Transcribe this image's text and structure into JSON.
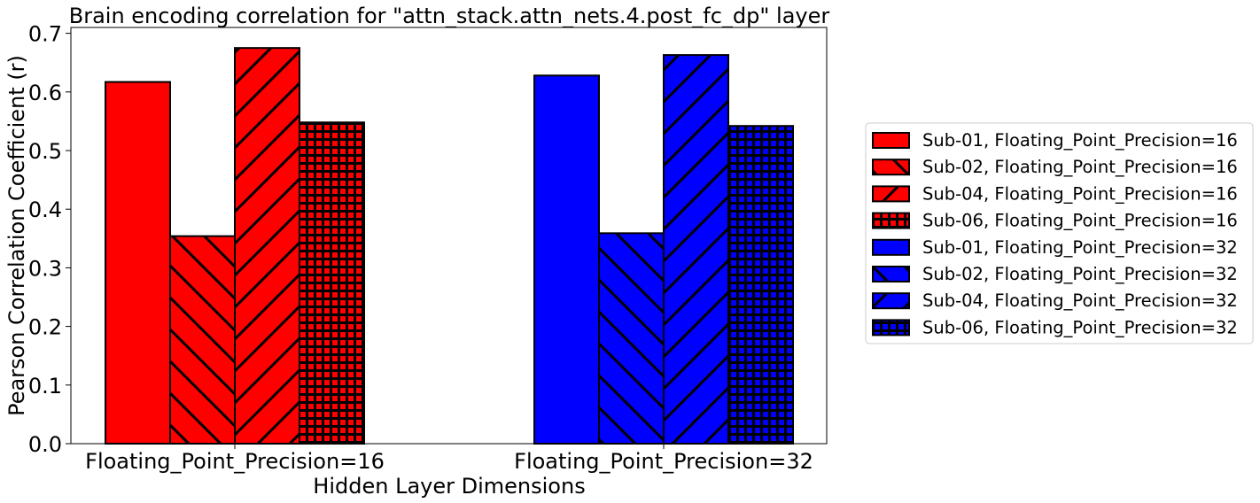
{
  "chart_data": {
    "type": "bar",
    "title": "Brain encoding correlation for \"attn_stack.attn_nets.4.post_fc_dp\" layer",
    "xlabel": "Hidden Layer Dimensions",
    "ylabel": "Pearson Correlation Coefficient (r)",
    "ylim": [
      0,
      0.71
    ],
    "yticks": [
      "0.0",
      "0.1",
      "0.2",
      "0.3",
      "0.4",
      "0.5",
      "0.6",
      "0.7"
    ],
    "categories": [
      "Floating_Point_Precision=16",
      "Floating_Point_Precision=32"
    ],
    "legend_position": "right",
    "grid": false,
    "series": [
      {
        "name": "Sub-01, Floating_Point_Precision=16",
        "category": 0,
        "value": 0.617,
        "color": "#ff0000",
        "hatch": "none"
      },
      {
        "name": "Sub-02, Floating_Point_Precision=16",
        "category": 0,
        "value": 0.354,
        "color": "#ff0000",
        "hatch": "backslash"
      },
      {
        "name": "Sub-04, Floating_Point_Precision=16",
        "category": 0,
        "value": 0.675,
        "color": "#ff0000",
        "hatch": "slash"
      },
      {
        "name": "Sub-06, Floating_Point_Precision=16",
        "category": 0,
        "value": 0.548,
        "color": "#ff0000",
        "hatch": "grid"
      },
      {
        "name": "Sub-01, Floating_Point_Precision=32",
        "category": 1,
        "value": 0.628,
        "color": "#0000ff",
        "hatch": "none"
      },
      {
        "name": "Sub-02, Floating_Point_Precision=32",
        "category": 1,
        "value": 0.359,
        "color": "#0000ff",
        "hatch": "backslash"
      },
      {
        "name": "Sub-04, Floating_Point_Precision=32",
        "category": 1,
        "value": 0.663,
        "color": "#0000ff",
        "hatch": "slash"
      },
      {
        "name": "Sub-06, Floating_Point_Precision=32",
        "category": 1,
        "value": 0.542,
        "color": "#0000ff",
        "hatch": "grid"
      }
    ]
  }
}
